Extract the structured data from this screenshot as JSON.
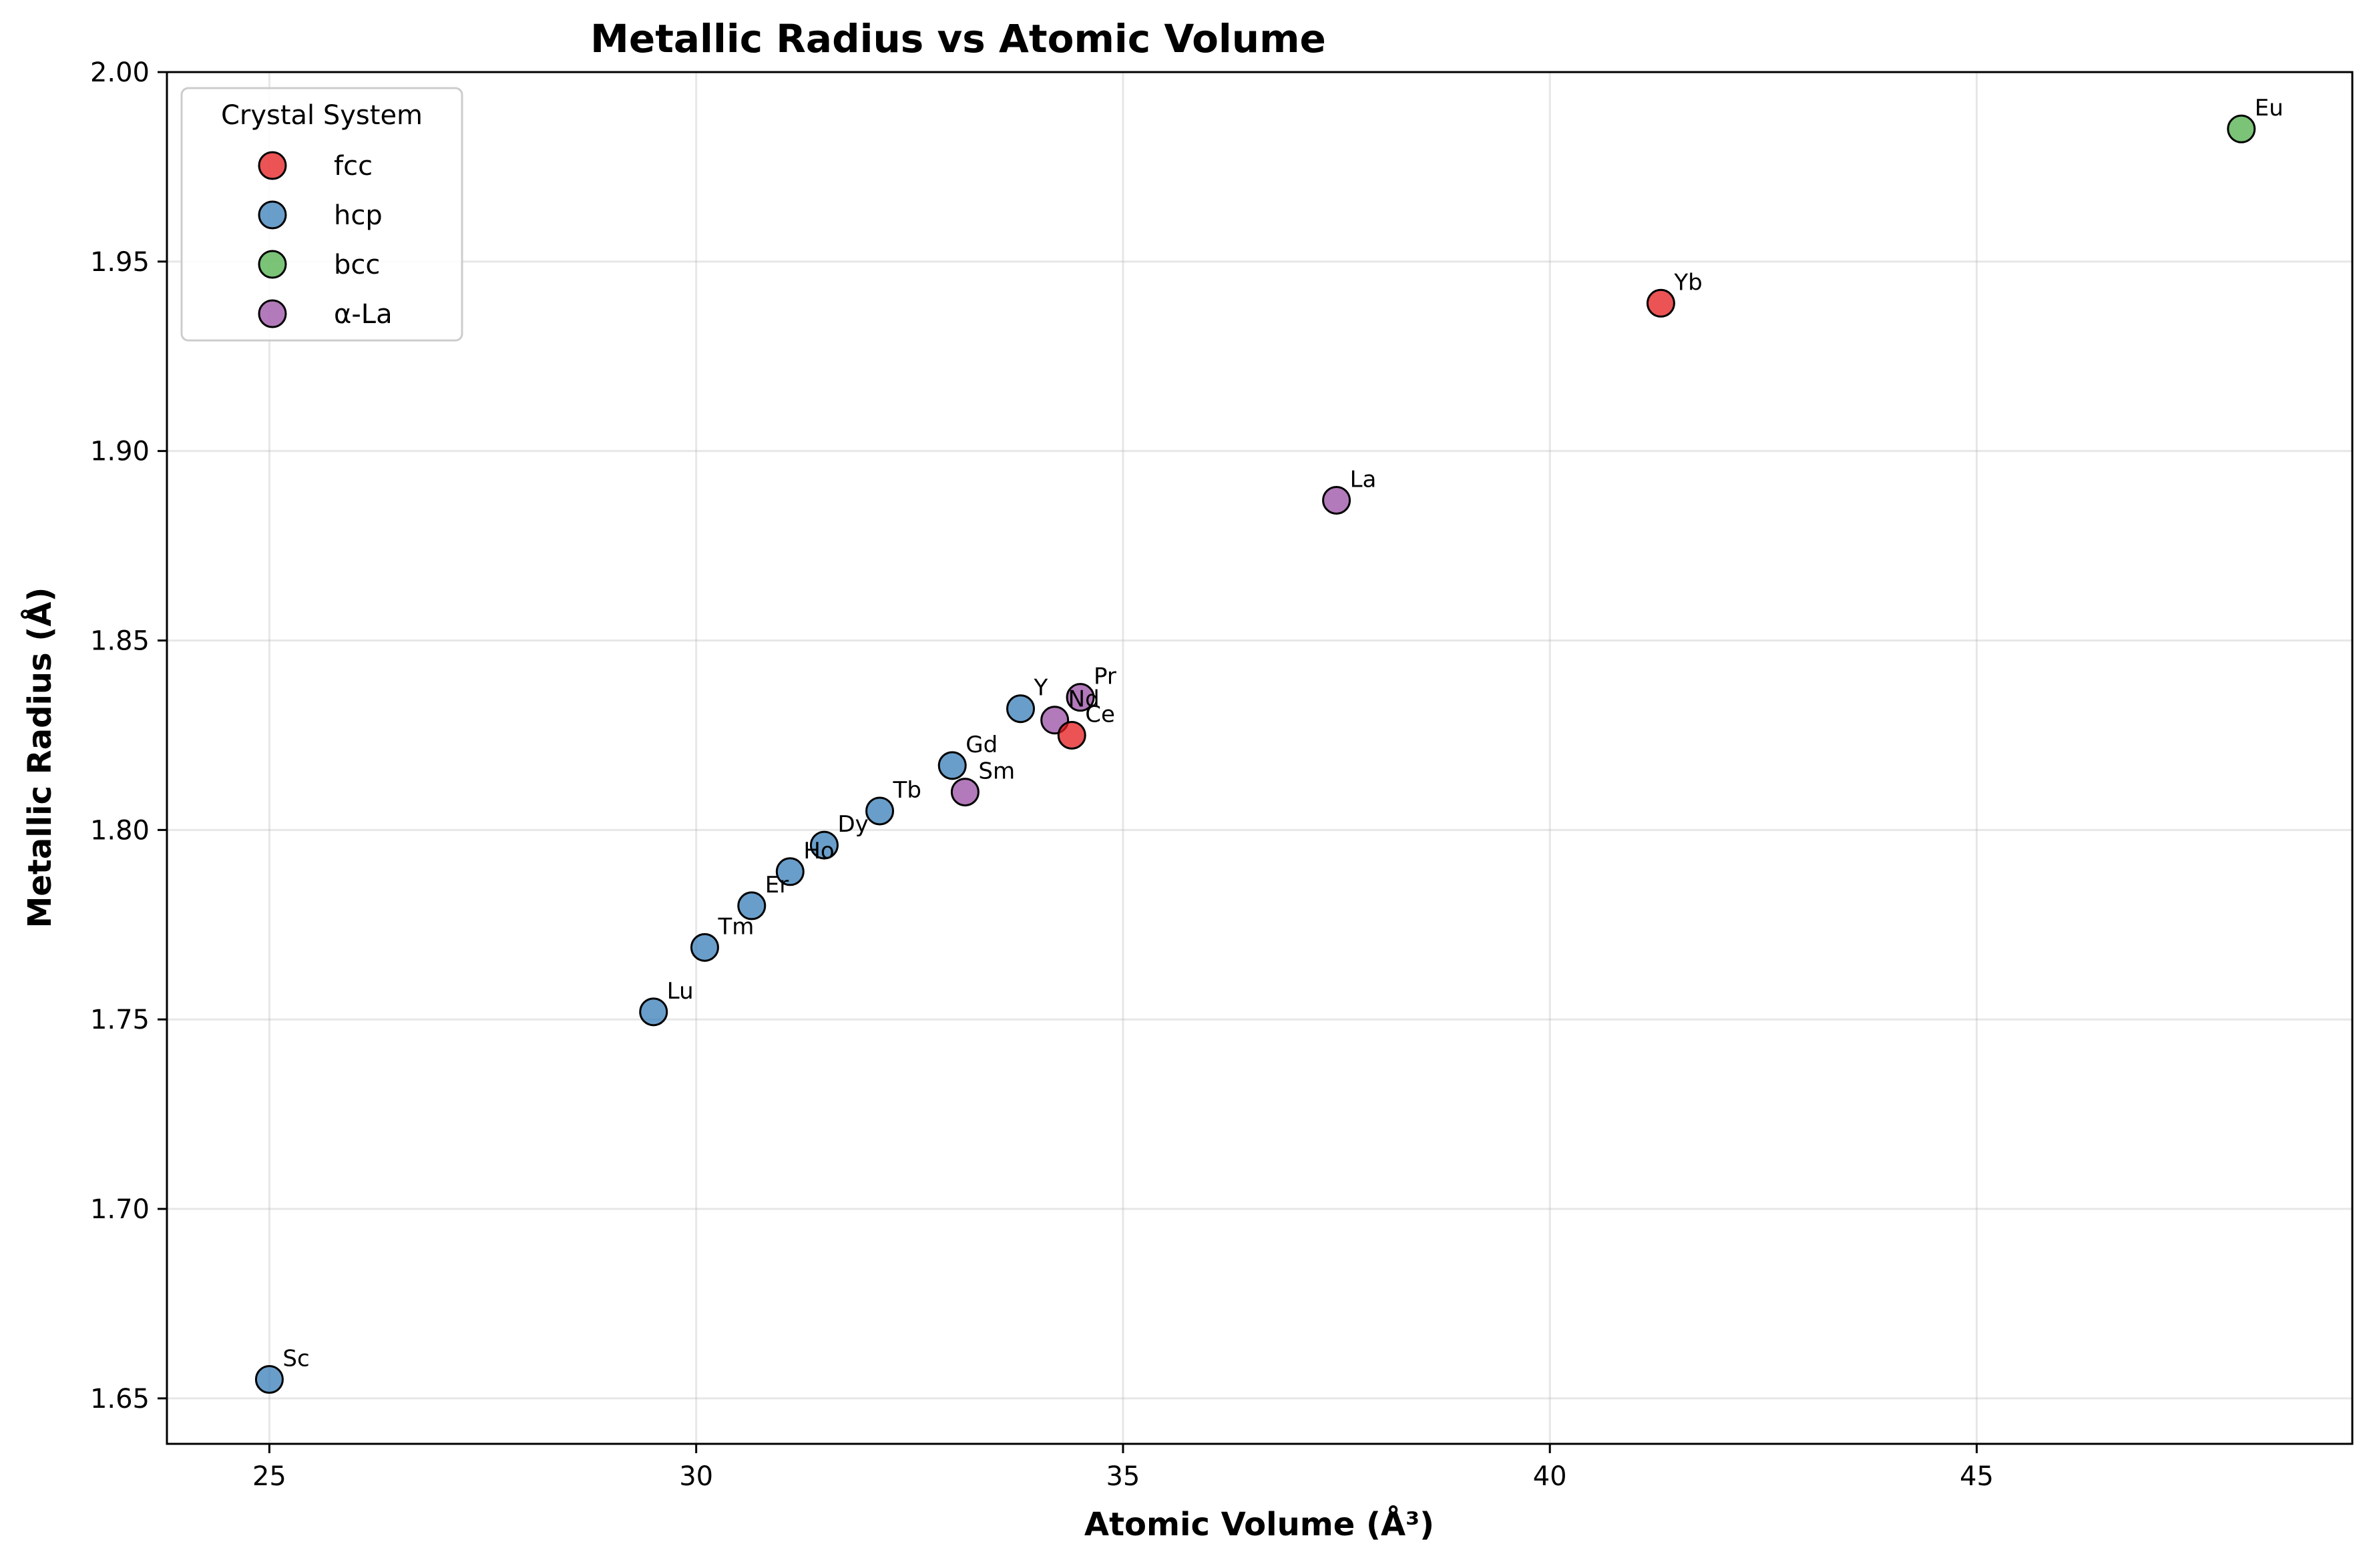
{
  "chart_data": {
    "type": "scatter",
    "title": "Metallic Radius vs Atomic Volume",
    "xlabel": "Atomic Volume (Å³)",
    "ylabel": "Metallic Radius (Å)",
    "xlim": [
      23.8,
      49.4
    ],
    "ylim": [
      1.638,
      2.0
    ],
    "xticks": [
      25,
      30,
      35,
      40,
      45
    ],
    "yticks": [
      1.65,
      1.7,
      1.75,
      1.8,
      1.85,
      1.9,
      1.95,
      2.0
    ],
    "xtick_labels": [
      "25",
      "30",
      "35",
      "40",
      "45"
    ],
    "ytick_labels": [
      "1.65",
      "1.70",
      "1.75",
      "1.80",
      "1.85",
      "1.90",
      "1.95",
      "2.00"
    ],
    "grid": true,
    "legend": {
      "title": "Crystal System",
      "placement": "top-left",
      "entries": [
        "fcc",
        "hcp",
        "bcc",
        "α-La"
      ]
    },
    "colors": {
      "fcc": "#e41a1c",
      "hcp": "#377eb8",
      "bcc": "#4daf4a",
      "α-La": "#984ea3"
    },
    "points": [
      {
        "label": "Sc",
        "x": 25.0,
        "y": 1.655,
        "system": "hcp"
      },
      {
        "label": "Lu",
        "x": 29.5,
        "y": 1.752,
        "system": "hcp"
      },
      {
        "label": "Tm",
        "x": 30.1,
        "y": 1.769,
        "system": "hcp"
      },
      {
        "label": "Er",
        "x": 30.65,
        "y": 1.78,
        "system": "hcp"
      },
      {
        "label": "Ho",
        "x": 31.1,
        "y": 1.789,
        "system": "hcp"
      },
      {
        "label": "Dy",
        "x": 31.5,
        "y": 1.796,
        "system": "hcp"
      },
      {
        "label": "Tb",
        "x": 32.15,
        "y": 1.805,
        "system": "hcp"
      },
      {
        "label": "Gd",
        "x": 33.0,
        "y": 1.817,
        "system": "hcp"
      },
      {
        "label": "Sm",
        "x": 33.15,
        "y": 1.81,
        "system": "α-La"
      },
      {
        "label": "Y",
        "x": 33.8,
        "y": 1.832,
        "system": "hcp"
      },
      {
        "label": "Nd",
        "x": 34.2,
        "y": 1.829,
        "system": "α-La"
      },
      {
        "label": "Ce",
        "x": 34.4,
        "y": 1.825,
        "system": "fcc"
      },
      {
        "label": "Pr",
        "x": 34.5,
        "y": 1.835,
        "system": "α-La"
      },
      {
        "label": "La",
        "x": 37.5,
        "y": 1.887,
        "system": "α-La"
      },
      {
        "label": "Yb",
        "x": 41.3,
        "y": 1.939,
        "system": "fcc"
      },
      {
        "label": "Eu",
        "x": 48.1,
        "y": 1.985,
        "system": "bcc"
      }
    ]
  }
}
